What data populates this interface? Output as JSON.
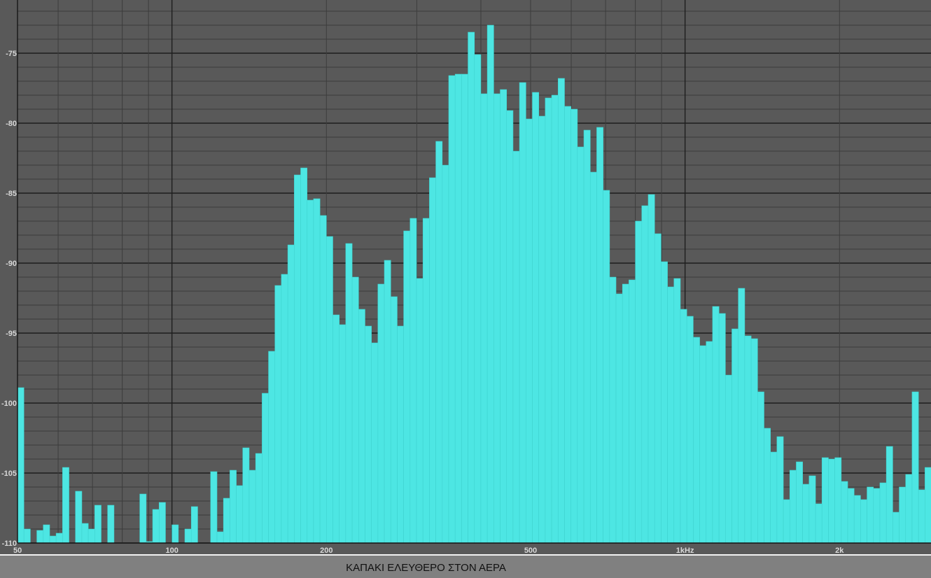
{
  "chart_data": {
    "type": "bar",
    "title": "",
    "caption": "ΚΑΠΑΚΙ ΕΛΕΥΘΕΡΟ ΣΤΟΝ ΑΕΡΑ",
    "xlabel": "",
    "ylabel": "",
    "x_scale": "log",
    "x_start_hz": 50,
    "bands_per_octave": 24,
    "xlim": [
      50,
      3000
    ],
    "ylim": [
      -110,
      -71.2
    ],
    "grid": true,
    "x_ticks": [
      {
        "value": 50,
        "label": "50"
      },
      {
        "value": 100,
        "label": "100"
      },
      {
        "value": 200,
        "label": "200"
      },
      {
        "value": 500,
        "label": "500"
      },
      {
        "value": 1000,
        "label": "1kHz"
      },
      {
        "value": 2000,
        "label": "2k"
      }
    ],
    "y_ticks": [
      {
        "value": -75,
        "label": "-75"
      },
      {
        "value": -80,
        "label": "-80"
      },
      {
        "value": -85,
        "label": "-85"
      },
      {
        "value": -90,
        "label": "-90"
      },
      {
        "value": -95,
        "label": "-95"
      },
      {
        "value": -100,
        "label": "-100"
      },
      {
        "value": -105,
        "label": "-105"
      },
      {
        "value": -110,
        "label": "-110"
      }
    ],
    "values": [
      -98.9,
      -109.0,
      null,
      -109.1,
      -108.7,
      -109.5,
      -109.3,
      -104.6,
      null,
      -106.3,
      -108.6,
      -109.0,
      -107.3,
      null,
      -107.3,
      null,
      null,
      null,
      null,
      -106.5,
      -109.9,
      -107.6,
      -107.1,
      null,
      -108.7,
      null,
      -109.0,
      -107.4,
      null,
      null,
      -104.9,
      -109.2,
      -106.8,
      -104.8,
      -105.9,
      -103.2,
      -104.8,
      -103.6,
      -99.3,
      -96.3,
      -91.6,
      -90.8,
      -88.7,
      -83.7,
      -83.2,
      -85.5,
      -85.4,
      -86.6,
      -88.1,
      -93.7,
      -94.4,
      -88.6,
      -91.0,
      -93.3,
      -94.5,
      -95.7,
      -91.5,
      -89.8,
      -92.4,
      -94.5,
      -87.7,
      -86.8,
      -91.1,
      -86.8,
      -83.9,
      -81.3,
      -83.0,
      -76.6,
      -76.5,
      -76.5,
      -73.5,
      -75.1,
      -77.9,
      -73.0,
      -77.9,
      -77.6,
      -79.1,
      -82.0,
      -77.1,
      -79.7,
      -77.8,
      -79.5,
      -78.2,
      -78.0,
      -76.8,
      -78.8,
      -79.0,
      -81.7,
      -80.5,
      -83.5,
      -80.3,
      -84.8,
      -91.0,
      -92.2,
      -91.5,
      -91.2,
      -87.0,
      -85.9,
      -85.1,
      -87.9,
      -89.9,
      -91.7,
      -91.1,
      -93.3,
      -93.8,
      -95.3,
      -95.9,
      -95.6,
      -93.1,
      -93.6,
      -98.0,
      -94.7,
      -91.8,
      -95.2,
      -95.4,
      -99.2,
      -101.8,
      -103.5,
      -102.4,
      -106.9,
      -104.8,
      -104.2,
      -105.8,
      -105.2,
      -107.2,
      -103.9,
      -104.0,
      -103.9,
      -105.6,
      -106.1,
      -106.6,
      -106.9,
      -106.0,
      -106.1,
      -105.7,
      -103.1,
      -107.8,
      -106.0,
      -105.1,
      -99.2,
      -106.2,
      -104.6
    ]
  },
  "colors": {
    "background": "#595959",
    "bar": "#4de6e3",
    "bar_edge": "#3fd3d0",
    "grid_minor": "#3c3c3c",
    "grid_major": "#1e1e1e",
    "tick_text": "#d8d8d8",
    "caption_bar": "#808080"
  }
}
